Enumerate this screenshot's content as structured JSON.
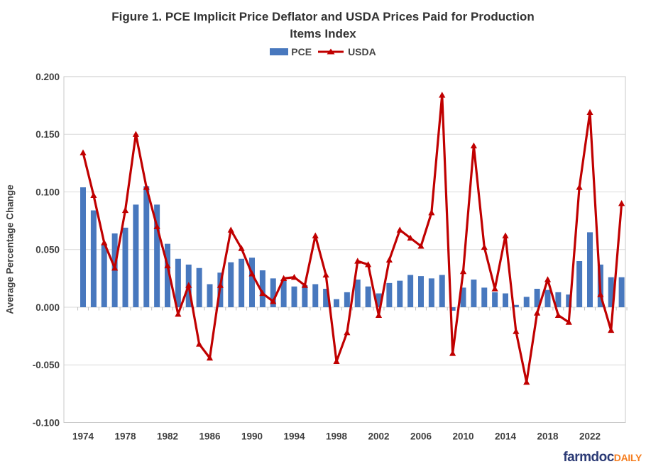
{
  "chart_data": {
    "type": "combo",
    "title_line1": "Figure 1. PCE Implicit Price Deflator and USDA Prices Paid for Production",
    "title_line2": "Items Index",
    "ylabel": "Average Percentage Change",
    "ylim": [
      -0.1,
      0.2
    ],
    "grid": "horizontal",
    "legend_position": "top",
    "x": [
      1974,
      1975,
      1976,
      1977,
      1978,
      1979,
      1980,
      1981,
      1982,
      1983,
      1984,
      1985,
      1986,
      1987,
      1988,
      1989,
      1990,
      1991,
      1992,
      1993,
      1994,
      1995,
      1996,
      1997,
      1998,
      1999,
      2000,
      2001,
      2002,
      2003,
      2004,
      2005,
      2006,
      2007,
      2008,
      2009,
      2010,
      2011,
      2012,
      2013,
      2014,
      2015,
      2016,
      2017,
      2018,
      2019,
      2020,
      2021,
      2022,
      2023,
      2024,
      2025
    ],
    "x_tick_labels": [
      "1974",
      "1978",
      "1982",
      "1986",
      "1990",
      "1994",
      "1998",
      "2002",
      "2006",
      "2010",
      "2014",
      "2018",
      "2022"
    ],
    "y_tick_labels": [
      "0.200",
      "0.150",
      "0.100",
      "0.050",
      "0.000",
      "-0.050",
      "-0.100"
    ],
    "series": [
      {
        "name": "PCE",
        "type": "bar",
        "color": "#4878BE",
        "values": [
          0.104,
          0.084,
          0.054,
          0.064,
          0.069,
          0.089,
          0.105,
          0.089,
          0.055,
          0.042,
          0.037,
          0.034,
          0.02,
          0.03,
          0.039,
          0.042,
          0.043,
          0.032,
          0.025,
          0.024,
          0.018,
          0.019,
          0.02,
          0.016,
          0.007,
          0.013,
          0.024,
          0.018,
          0.012,
          0.021,
          0.023,
          0.028,
          0.027,
          0.025,
          0.028,
          -0.003,
          0.017,
          0.024,
          0.017,
          0.013,
          0.012,
          0.002,
          0.009,
          0.016,
          0.015,
          0.013,
          0.011,
          0.04,
          0.065,
          0.037,
          0.026,
          0.026
        ]
      },
      {
        "name": "USDA",
        "type": "line",
        "marker": "triangle",
        "color": "#C00000",
        "values": [
          0.134,
          0.097,
          0.056,
          0.034,
          0.084,
          0.15,
          0.104,
          0.07,
          0.036,
          -0.006,
          0.019,
          -0.032,
          -0.044,
          0.019,
          0.067,
          0.051,
          0.029,
          0.012,
          0.005,
          0.025,
          0.026,
          0.019,
          0.062,
          0.028,
          -0.047,
          -0.022,
          0.04,
          0.037,
          -0.007,
          0.041,
          0.067,
          0.06,
          0.053,
          0.082,
          0.184,
          -0.04,
          0.031,
          0.14,
          0.052,
          0.016,
          0.062,
          -0.021,
          -0.065,
          -0.005,
          0.024,
          -0.007,
          -0.013,
          0.104,
          0.169,
          0.011,
          -0.02,
          0.09
        ]
      }
    ],
    "colors": {
      "gridline": "#D9D9D9",
      "plot_border": "#C9C9C9",
      "tick_mark": "#BFBFBF",
      "text": "#404040"
    }
  },
  "footer": {
    "logo_farmdoc": "farmdoc",
    "logo_daily": "DAILY",
    "farmdoc_color": "#2B3A75",
    "daily_color": "#F57E20"
  }
}
